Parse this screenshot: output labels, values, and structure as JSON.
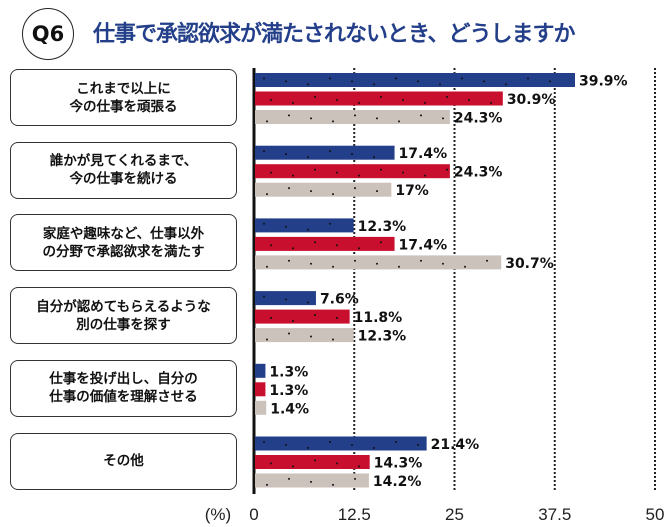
{
  "badge": "Q6",
  "title": "仕事で承認欲求が満たされないとき、どうしますか",
  "chart_data": {
    "type": "bar",
    "orientation": "horizontal",
    "categories": [
      [
        "これまで以上に",
        "今の仕事を頑張る"
      ],
      [
        "誰かが見てくれるまで、",
        "今の仕事を続ける"
      ],
      [
        "家庭や趣味など、仕事以外",
        "の分野で承認欲求を満たす"
      ],
      [
        "自分が認めてもらえるような",
        "別の仕事を探す"
      ],
      [
        "仕事を投げ出し、自分の",
        "仕事の価値を理解させる"
      ],
      [
        "その他"
      ]
    ],
    "series": [
      {
        "color": "#233f8a",
        "values": [
          39.9,
          17.4,
          12.3,
          7.6,
          1.3,
          21.4
        ],
        "labels": [
          "39.9%",
          "17.4%",
          "12.3%",
          "7.6%",
          "1.3%",
          "21.4%"
        ]
      },
      {
        "color": "#c8102e",
        "values": [
          30.9,
          24.3,
          17.4,
          11.8,
          1.3,
          14.3
        ],
        "labels": [
          "30.9%",
          "24.3%",
          "17.4%",
          "11.8%",
          "1.3%",
          "14.3%"
        ]
      },
      {
        "color": "#cbc2bb",
        "values": [
          24.3,
          17,
          30.7,
          12.3,
          1.4,
          14.2
        ],
        "labels": [
          "24.3%",
          "17%",
          "30.7%",
          "12.3%",
          "1.4%",
          "14.2%"
        ]
      }
    ],
    "xlim": [
      0,
      50
    ],
    "xticks": [
      "0",
      "12.5",
      "25",
      "37.5",
      "50"
    ],
    "unit_label": "(%)",
    "grid": "dotted vertical"
  }
}
